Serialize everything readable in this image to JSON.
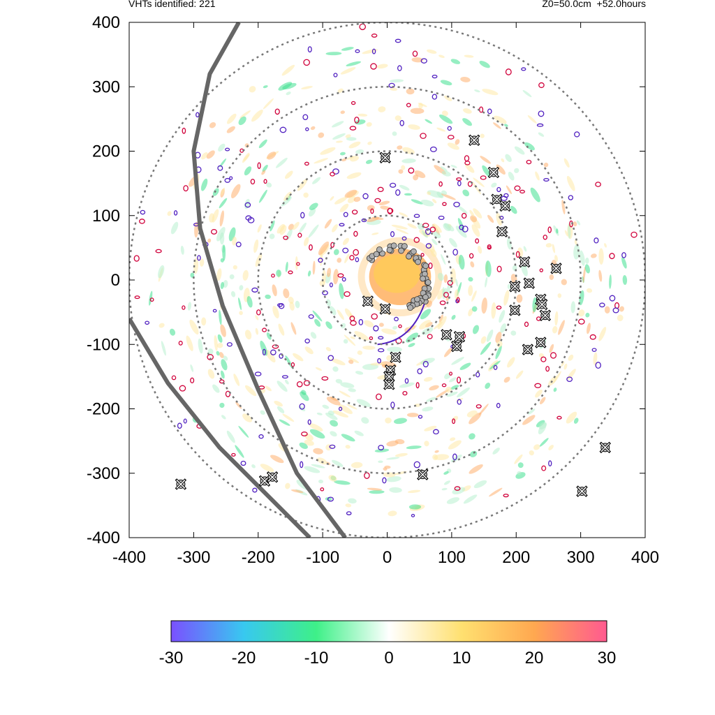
{
  "header": {
    "left_text": "VHTs identified: 221",
    "right_text": "Z0=50.0cm  +52.0hours"
  },
  "chart_data": {
    "type": "scatter",
    "title": "",
    "xlabel": "",
    "ylabel": "",
    "xlim": [
      -400,
      400
    ],
    "ylim": [
      -400,
      400
    ],
    "x_ticks": [
      "-400",
      "-300",
      "-200",
      "-100",
      "0",
      "100",
      "200",
      "300",
      "400"
    ],
    "y_ticks": [
      "400",
      "300",
      "200",
      "100",
      "0",
      "-100",
      "-200",
      "-300",
      "-400"
    ],
    "range_rings": [
      100,
      200,
      300,
      400
    ],
    "colorbar": {
      "min": -30,
      "max": 30,
      "ticks": [
        "-30",
        "-20",
        "-10",
        "0",
        "10",
        "20",
        "30"
      ],
      "colors": [
        "#7a50ff",
        "#38c8f0",
        "#3ef088",
        "#ffffff",
        "#ffe070",
        "#ffa850",
        "#ff5a90"
      ]
    },
    "colors": {
      "ring": "#777777",
      "track": "#666666",
      "marker_fill": "#c8c8c8",
      "positive_fill": "#ffb060",
      "negative_fill": "#40e090",
      "contour_positive": "#d0003a",
      "contour_negative": "#5020c0"
    },
    "series": [
      {
        "marker": "x",
        "points": [
          [
            -30,
            -33
          ],
          [
            -3,
            -45
          ],
          [
            -3,
            190
          ],
          [
            13,
            -120
          ],
          [
            5,
            -140
          ],
          [
            3,
            -150
          ],
          [
            3,
            -162
          ],
          [
            135,
            217
          ],
          [
            165,
            167
          ],
          [
            170,
            125
          ],
          [
            183,
            115
          ],
          [
            178,
            75
          ],
          [
            213,
            28
          ],
          [
            220,
            -5
          ],
          [
            198,
            -10
          ],
          [
            198,
            -47
          ],
          [
            262,
            18
          ],
          [
            238,
            -30
          ],
          [
            240,
            -38
          ],
          [
            245,
            -55
          ],
          [
            218,
            -108
          ],
          [
            238,
            -97
          ],
          [
            112,
            -88
          ],
          [
            92,
            -85
          ],
          [
            108,
            -103
          ],
          [
            55,
            -302
          ],
          [
            338,
            -260
          ],
          [
            302,
            -328
          ],
          [
            -320,
            -317
          ],
          [
            -190,
            -312
          ],
          [
            -178,
            -306
          ]
        ]
      },
      {
        "marker": "eyewall-cluster",
        "points": [
          [
            -28,
            33
          ],
          [
            -12,
            43
          ],
          [
            8,
            50
          ],
          [
            25,
            48
          ],
          [
            38,
            42
          ],
          [
            48,
            30
          ],
          [
            55,
            18
          ],
          [
            60,
            5
          ],
          [
            62,
            -8
          ],
          [
            60,
            -20
          ],
          [
            55,
            -30
          ],
          [
            45,
            -35
          ],
          [
            35,
            -38
          ]
        ]
      }
    ]
  }
}
